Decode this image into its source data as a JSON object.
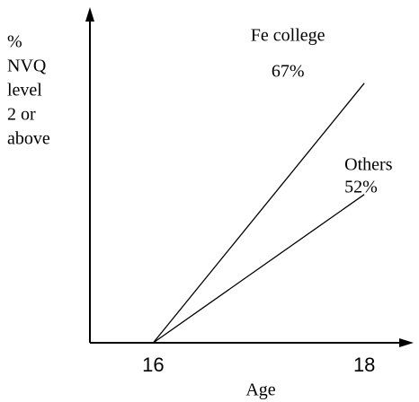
{
  "chart_data": {
    "type": "line",
    "xlabel": "Age",
    "ylabel": [
      "%",
      "NVQ",
      "level",
      "2 or",
      "above"
    ],
    "x": [
      16,
      18
    ],
    "xlim": [
      15.4,
      18.45
    ],
    "xticks": [
      16,
      18
    ],
    "ylim": [
      32,
      77
    ],
    "series": [
      {
        "name": "Fe college",
        "color": "#000000",
        "values": [
          32,
          67
        ],
        "value_labels": [
          null,
          "67%"
        ]
      },
      {
        "name": "Others",
        "color": "#000000",
        "values": [
          32,
          52
        ],
        "value_labels": [
          null,
          "52%"
        ]
      }
    ]
  }
}
